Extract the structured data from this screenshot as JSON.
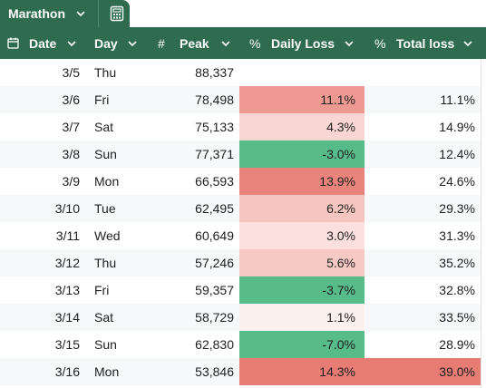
{
  "tab": {
    "title": "Marathon",
    "chevron_icon": "chevron-down-icon",
    "grid_icon": "calculator-icon"
  },
  "columns": [
    {
      "key": "date",
      "label": "Date",
      "icon": "calendar-icon"
    },
    {
      "key": "day",
      "label": "Day",
      "icon": ""
    },
    {
      "key": "peak",
      "label": "Peak",
      "icon": "#"
    },
    {
      "key": "daily_loss",
      "label": "Daily Loss",
      "icon": "%"
    },
    {
      "key": "total_loss",
      "label": "Total loss",
      "icon": "%"
    }
  ],
  "colors": {
    "header_bg": "#2e6b4f",
    "header_text": "#ffffff",
    "alt_row_bg": "#f7f8fa",
    "loss_scale": {
      "negative": "#57bb8a",
      "low": "#fdf1f0",
      "high": "#e67c73"
    },
    "total_highlight": "#e67c73"
  },
  "rows": [
    {
      "date": "3/5",
      "day": "Thu",
      "peak": "88,337",
      "daily_loss": "",
      "total_loss": "",
      "loss_color": "",
      "total_color": ""
    },
    {
      "date": "3/6",
      "day": "Fri",
      "peak": "78,498",
      "daily_loss": "11.1%",
      "total_loss": "11.1%",
      "loss_color": "#ee9a93",
      "total_color": ""
    },
    {
      "date": "3/7",
      "day": "Sat",
      "peak": "75,133",
      "daily_loss": "4.3%",
      "total_loss": "14.9%",
      "loss_color": "#f9d6d3",
      "total_color": ""
    },
    {
      "date": "3/8",
      "day": "Sun",
      "peak": "77,371",
      "daily_loss": "-3.0%",
      "total_loss": "12.4%",
      "loss_color": "#57bb8a",
      "total_color": ""
    },
    {
      "date": "3/9",
      "day": "Mon",
      "peak": "66,593",
      "daily_loss": "13.9%",
      "total_loss": "24.6%",
      "loss_color": "#e8847b",
      "total_color": ""
    },
    {
      "date": "3/10",
      "day": "Tue",
      "peak": "62,495",
      "daily_loss": "6.2%",
      "total_loss": "29.3%",
      "loss_color": "#f5c5c0",
      "total_color": ""
    },
    {
      "date": "3/11",
      "day": "Wed",
      "peak": "60,649",
      "daily_loss": "3.0%",
      "total_loss": "31.3%",
      "loss_color": "#fbe0de",
      "total_color": ""
    },
    {
      "date": "3/12",
      "day": "Thu",
      "peak": "57,246",
      "daily_loss": "5.6%",
      "total_loss": "35.2%",
      "loss_color": "#f6c9c5",
      "total_color": ""
    },
    {
      "date": "3/13",
      "day": "Fri",
      "peak": "59,357",
      "daily_loss": "-3.7%",
      "total_loss": "32.8%",
      "loss_color": "#57bb8a",
      "total_color": ""
    },
    {
      "date": "3/14",
      "day": "Sat",
      "peak": "58,729",
      "daily_loss": "1.1%",
      "total_loss": "33.5%",
      "loss_color": "#fdf1f0",
      "total_color": ""
    },
    {
      "date": "3/15",
      "day": "Sun",
      "peak": "62,830",
      "daily_loss": "-7.0%",
      "total_loss": "28.9%",
      "loss_color": "#57bb8a",
      "total_color": ""
    },
    {
      "date": "3/16",
      "day": "Mon",
      "peak": "53,846",
      "daily_loss": "14.3%",
      "total_loss": "39.0%",
      "loss_color": "#e67c73",
      "total_color": "#e67c73"
    }
  ]
}
